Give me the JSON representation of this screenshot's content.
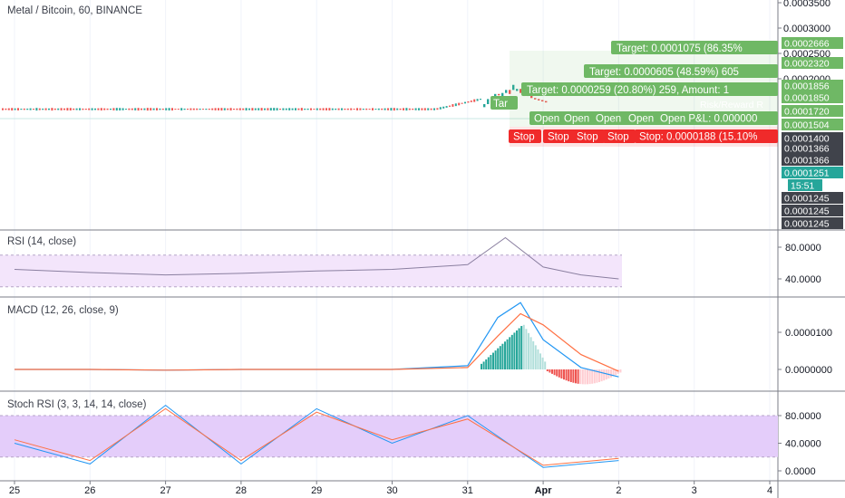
{
  "colors": {
    "price_line": "#2f2f35",
    "up": "#26a69a",
    "down": "#ef5350",
    "target_green": "#6fb865",
    "stop_red": "#f02a2a",
    "teal_label": "#26a69a",
    "dark_label": "#40434b",
    "rsi_band": "#f3e5fb",
    "stoch_band": "#e4cdfa",
    "macd_line": "#2196f3",
    "signal_line": "#ff7043",
    "grid": "#f0f3fa",
    "axis_text": "#131722"
  },
  "chart_data": [
    {
      "type": "line",
      "name": "price",
      "title": "Metal / Bitcoin, 60, BINANCE",
      "x_ticks": [
        "25",
        "26",
        "27",
        "28",
        "29",
        "30",
        "31",
        "Apr",
        "2",
        "3",
        "4"
      ],
      "x": [
        "25",
        "26",
        "27",
        "28",
        "29",
        "30",
        "31",
        "31.5",
        "Apr",
        "1.5",
        "2"
      ],
      "values": [
        0.00014,
        0.0001395,
        0.0001398,
        0.0001402,
        0.0001405,
        0.000141,
        0.000143,
        0.000182,
        0.00017,
        0.000156,
        0.000147
      ],
      "y_axis_ticks": [
        "0.0003500",
        "0.0003000",
        "0.0002500",
        "0.0002000"
      ],
      "price_labels": [
        {
          "text": "0.0002666",
          "kind": "green"
        },
        {
          "text": "0.0002320",
          "kind": "green"
        },
        {
          "text": "0.0001856",
          "kind": "green"
        },
        {
          "text": "0.0001850",
          "kind": "green"
        },
        {
          "text": "0.0001720",
          "kind": "green"
        },
        {
          "text": "0.0001504",
          "kind": "green"
        },
        {
          "text": "0.0001400",
          "kind": "dark"
        },
        {
          "text": "0.0001366",
          "kind": "dark"
        },
        {
          "text": "0.0001366",
          "kind": "dark"
        },
        {
          "text": "0.0001251",
          "kind": "teal"
        },
        {
          "text": "15:51",
          "kind": "teal"
        },
        {
          "text": "0.0001245",
          "kind": "dark"
        },
        {
          "text": "0.0001245",
          "kind": "dark"
        },
        {
          "text": "0.0001245",
          "kind": "dark"
        }
      ],
      "annotations": {
        "targets": [
          "Target: 0.0001075 (86.35%",
          "Target: 0.0000605 (48.59%) 605",
          "Target: 0.0000259 (20.80%) 259, Amount: 1"
        ],
        "open_labels": [
          "Open",
          "Open",
          "Open",
          "Open",
          "Open P&L: 0.000000"
        ],
        "stop_labels": [
          "Stop",
          "Stop",
          "Stop",
          "Stop",
          "Stop: 0.0000188 (15.10%"
        ],
        "truncated_labels": [
          "Tar",
          "Risk/Reward R"
        ]
      }
    },
    {
      "type": "line",
      "name": "rsi",
      "title": "RSI (14, close)",
      "y_axis_ticks": [
        "80.0000",
        "40.0000"
      ],
      "band": [
        30,
        70
      ],
      "x": [
        "25",
        "26",
        "27",
        "28",
        "29",
        "30",
        "31",
        "31.5",
        "Apr",
        "1.5",
        "2"
      ],
      "values": [
        52,
        48,
        45,
        47,
        50,
        52,
        58,
        92,
        55,
        45,
        40
      ]
    },
    {
      "type": "line",
      "name": "macd",
      "title": "MACD (12, 26, close, 9)",
      "y_axis_ticks": [
        "0.0000100",
        "0.0000000"
      ],
      "x": [
        "25",
        "26",
        "27",
        "28",
        "29",
        "30",
        "31",
        "31.4",
        "31.7",
        "Apr",
        "1.5",
        "2"
      ],
      "series": [
        {
          "values": [
            0,
            0,
            -2e-07,
            0,
            0,
            0,
            1e-06,
            1.4e-05,
            1.8e-05,
            8e-06,
            5e-07,
            -2e-06
          ]
        },
        {
          "values": [
            0,
            0,
            -2e-07,
            0,
            0,
            0,
            5e-07,
            9e-06,
            1.5e-05,
            1.2e-05,
            4e-06,
            -5e-07
          ]
        }
      ]
    },
    {
      "type": "line",
      "name": "stoch_rsi",
      "title": "Stoch RSI (3, 3, 14, 14, close)",
      "y_axis_ticks": [
        "80.0000",
        "40.0000",
        "0.0000"
      ],
      "band": [
        20,
        80
      ],
      "x": [
        "25",
        "26",
        "27",
        "28",
        "29",
        "30",
        "31",
        "Apr",
        "2"
      ],
      "series": [
        {
          "values": [
            40,
            10,
            95,
            10,
            90,
            40,
            80,
            5,
            15
          ]
        },
        {
          "values": [
            45,
            15,
            90,
            15,
            85,
            45,
            75,
            8,
            18
          ]
        }
      ]
    }
  ]
}
